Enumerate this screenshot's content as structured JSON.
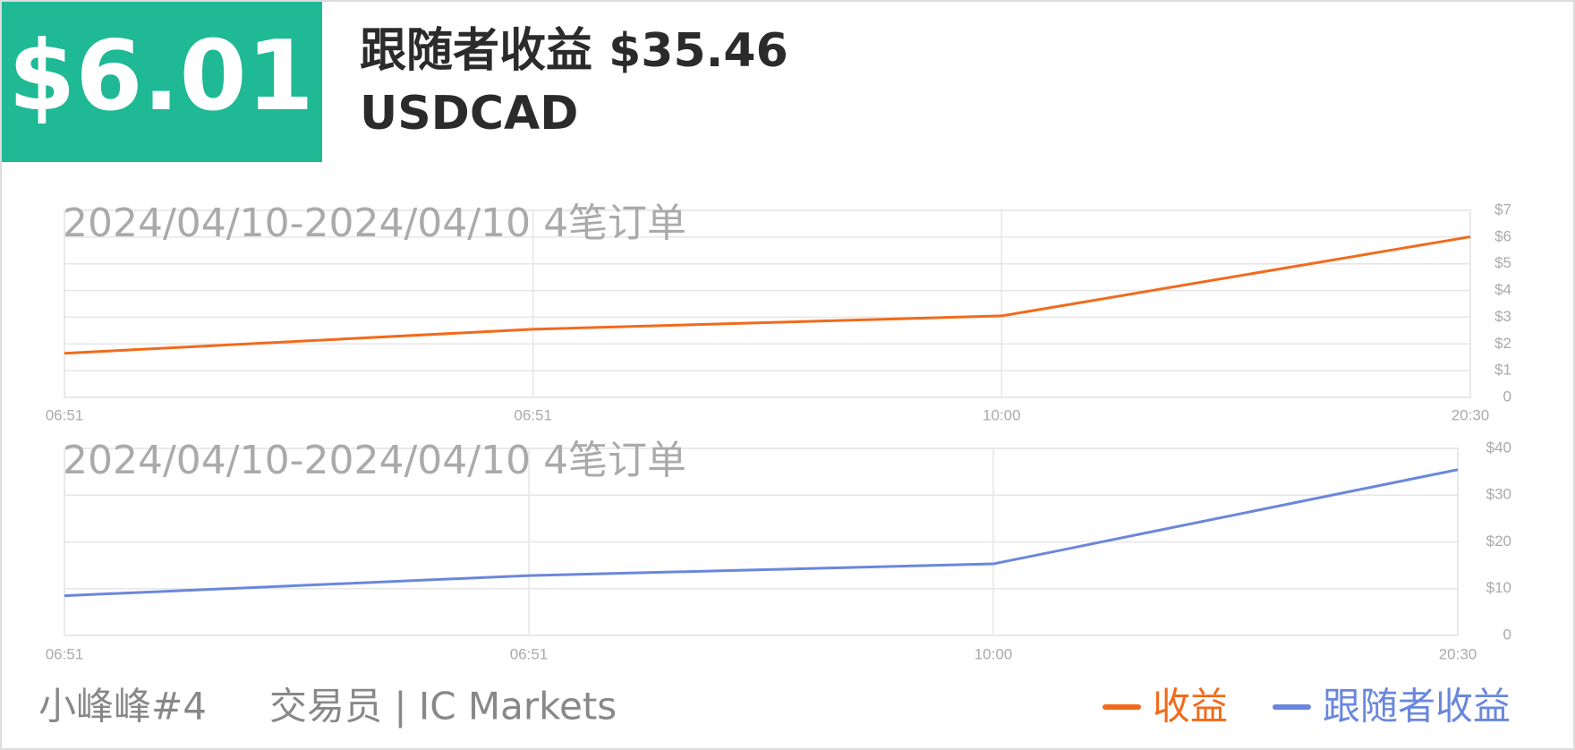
{
  "header": {
    "value": "$6.01",
    "title": "跟随者收益 $35.46",
    "symbol": "USDCAD"
  },
  "footer": {
    "trader": "小峰峰#4",
    "role": "交易员 | IC Markets"
  },
  "chart_data": [
    {
      "type": "line",
      "annotation": "2024/04/10-2024/04/10 4笔订单",
      "categories": [
        "06:51",
        "06:51",
        "10:00",
        "20:30"
      ],
      "series": [
        {
          "name": "收益",
          "color": "#f26a1b",
          "values": [
            1.65,
            2.55,
            3.05,
            6.01
          ]
        }
      ],
      "ylim": [
        0,
        7
      ],
      "yticks": [
        0,
        {
          "value": 1,
          "label": "$1"
        },
        {
          "value": 2,
          "label": "$2"
        },
        {
          "value": 3,
          "label": "$3"
        },
        {
          "value": 4,
          "label": "$4"
        },
        {
          "value": 5,
          "label": "$5"
        },
        {
          "value": 6,
          "label": "$6"
        },
        {
          "value": 7,
          "label": "$7"
        }
      ],
      "grid": true
    },
    {
      "type": "line",
      "annotation": "2024/04/10-2024/04/10 4笔订单",
      "categories": [
        "06:51",
        "06:51",
        "10:00",
        "20:30"
      ],
      "series": [
        {
          "name": "跟随者收益",
          "color": "#6a87dc",
          "values": [
            8.5,
            12.8,
            15.3,
            35.46
          ]
        }
      ],
      "ylim": [
        0,
        40
      ],
      "yticks": [
        0,
        {
          "value": 10,
          "label": "$10"
        },
        {
          "value": 20,
          "label": "$20"
        },
        {
          "value": 30,
          "label": "$30"
        },
        {
          "value": 40,
          "label": "$40"
        }
      ],
      "grid": true
    }
  ]
}
